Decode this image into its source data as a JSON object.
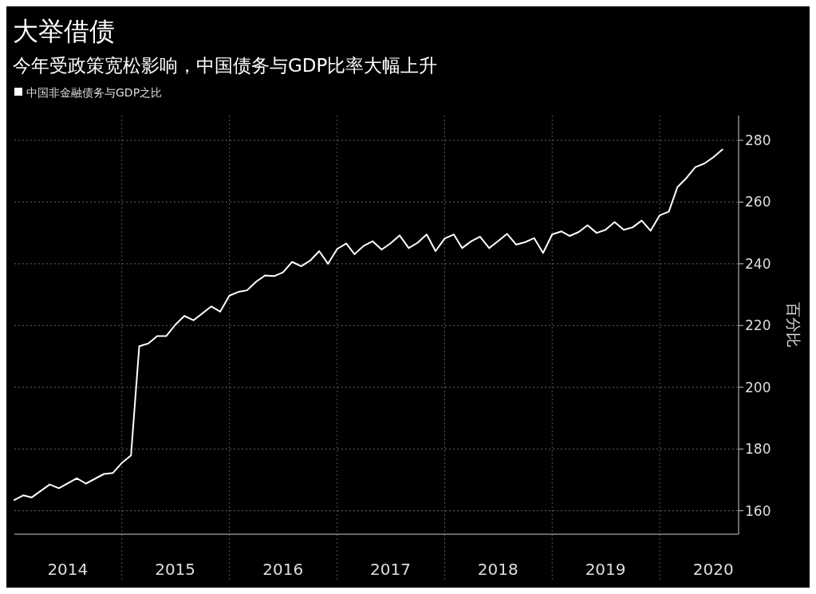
{
  "chart_data": {
    "type": "line",
    "title": "大举借债",
    "subtitle": "今年受政策宽松影响，中国债务与GDP比率大幅上升",
    "ylabel": "百分比",
    "x": [
      "2014-01",
      "2014-02",
      "2014-03",
      "2014-05",
      "2014-06",
      "2014-08",
      "2014-09",
      "2014-11",
      "2014-12",
      "2015-01",
      "2015-02",
      "2015-03",
      "2015-04",
      "2015-05",
      "2015-06",
      "2015-07",
      "2015-08",
      "2015-09",
      "2015-11",
      "2015-12",
      "2016-01",
      "2016-02",
      "2016-03",
      "2016-04",
      "2016-05",
      "2016-06",
      "2016-07",
      "2016-08",
      "2016-09",
      "2016-10",
      "2016-11",
      "2016-12",
      "2017-01",
      "2017-02",
      "2017-03",
      "2017-04",
      "2017-05",
      "2017-06",
      "2017-07",
      "2017-08",
      "2017-09",
      "2017-10",
      "2017-11",
      "2017-12",
      "2018-01",
      "2018-02",
      "2018-03",
      "2018-04",
      "2018-05",
      "2018-06",
      "2018-07",
      "2018-08",
      "2018-09",
      "2018-10",
      "2018-11",
      "2018-12",
      "2019-01",
      "2019-02",
      "2019-03",
      "2019-04",
      "2019-05",
      "2019-06",
      "2019-07",
      "2019-08",
      "2019-09",
      "2019-10",
      "2019-11",
      "2019-12",
      "2020-01",
      "2020-02",
      "2020-03",
      "2020-04",
      "2020-05",
      "2020-06",
      "2020-07",
      "2020-08"
    ],
    "series": [
      {
        "name": "中国非金融债务与GDP之比",
        "color": "#ffffff",
        "values": [
          163.5,
          165.0,
          164.3,
          168.5,
          167.3,
          170.5,
          168.8,
          171.9,
          172.2,
          175.5,
          177.9,
          213.3,
          214.2,
          216.6,
          216.6,
          220.2,
          223.1,
          221.7,
          226.2,
          224.5,
          229.7,
          230.9,
          231.4,
          234.2,
          236.2,
          236.0,
          237.2,
          240.6,
          239.2,
          241.0,
          244.1,
          240.0,
          244.8,
          246.6,
          243.1,
          245.8,
          247.3,
          244.6,
          246.6,
          249.2,
          245.1,
          246.8,
          249.5,
          244.1,
          248.2,
          249.5,
          245.1,
          247.3,
          248.8,
          245.1,
          247.3,
          249.7,
          246.2,
          247.0,
          248.3,
          243.5,
          249.5,
          250.5,
          249.0,
          250.3,
          252.5,
          250.0,
          251.0,
          253.5,
          251.0,
          251.8,
          254.0,
          250.7,
          255.7,
          256.9,
          264.8,
          267.8,
          271.3,
          272.5,
          274.5,
          277.0
        ]
      }
    ],
    "xlim": [
      "2014-01-01",
      "2020-09-25"
    ],
    "xticks": [
      {
        "value": "2014-07-01",
        "label": "2014"
      },
      {
        "value": "2015-01-01",
        "label": null
      },
      {
        "value": "2015-07-01",
        "label": "2015"
      },
      {
        "value": "2016-01-01",
        "label": null
      },
      {
        "value": "2016-07-01",
        "label": "2016"
      },
      {
        "value": "2017-01-01",
        "label": null
      },
      {
        "value": "2017-07-01",
        "label": "2017"
      },
      {
        "value": "2018-01-01",
        "label": null
      },
      {
        "value": "2018-07-01",
        "label": "2018"
      },
      {
        "value": "2019-01-01",
        "label": null
      },
      {
        "value": "2019-07-01",
        "label": "2019"
      },
      {
        "value": "2020-01-01",
        "label": null
      },
      {
        "value": "2020-07-01",
        "label": "2020"
      }
    ],
    "ylim": [
      152.4,
      288
    ],
    "yticks": [
      160,
      180,
      200,
      220,
      240,
      260,
      280
    ],
    "grid": true,
    "legend": "top left",
    "marker": "none",
    "line_style": "solid"
  }
}
